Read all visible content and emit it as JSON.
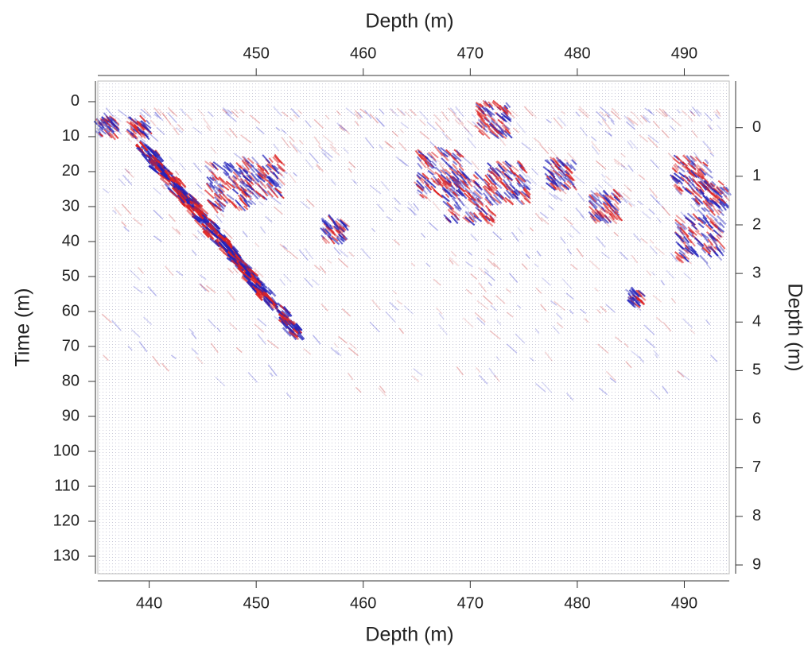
{
  "chart_data": {
    "type": "image",
    "title": "Depth (m)",
    "xlabel": "Depth (m)",
    "ylabel": "Time (m)",
    "y2label": "Depth (m)",
    "xlim": [
      435.2,
      494.2
    ],
    "xticks": [
      440,
      450,
      460,
      470,
      480,
      490
    ],
    "x2ticks": [
      450,
      460,
      470,
      480,
      490
    ],
    "ylim": [
      -5.9,
      135
    ],
    "yticks": [
      0,
      10,
      20,
      30,
      40,
      50,
      60,
      70,
      80,
      90,
      100,
      110,
      120,
      130
    ],
    "y2lim": [
      -0.96,
      9.18
    ],
    "y2ticks": [
      0,
      1,
      2,
      3,
      4,
      5,
      6,
      7,
      8,
      9
    ]
  }
}
